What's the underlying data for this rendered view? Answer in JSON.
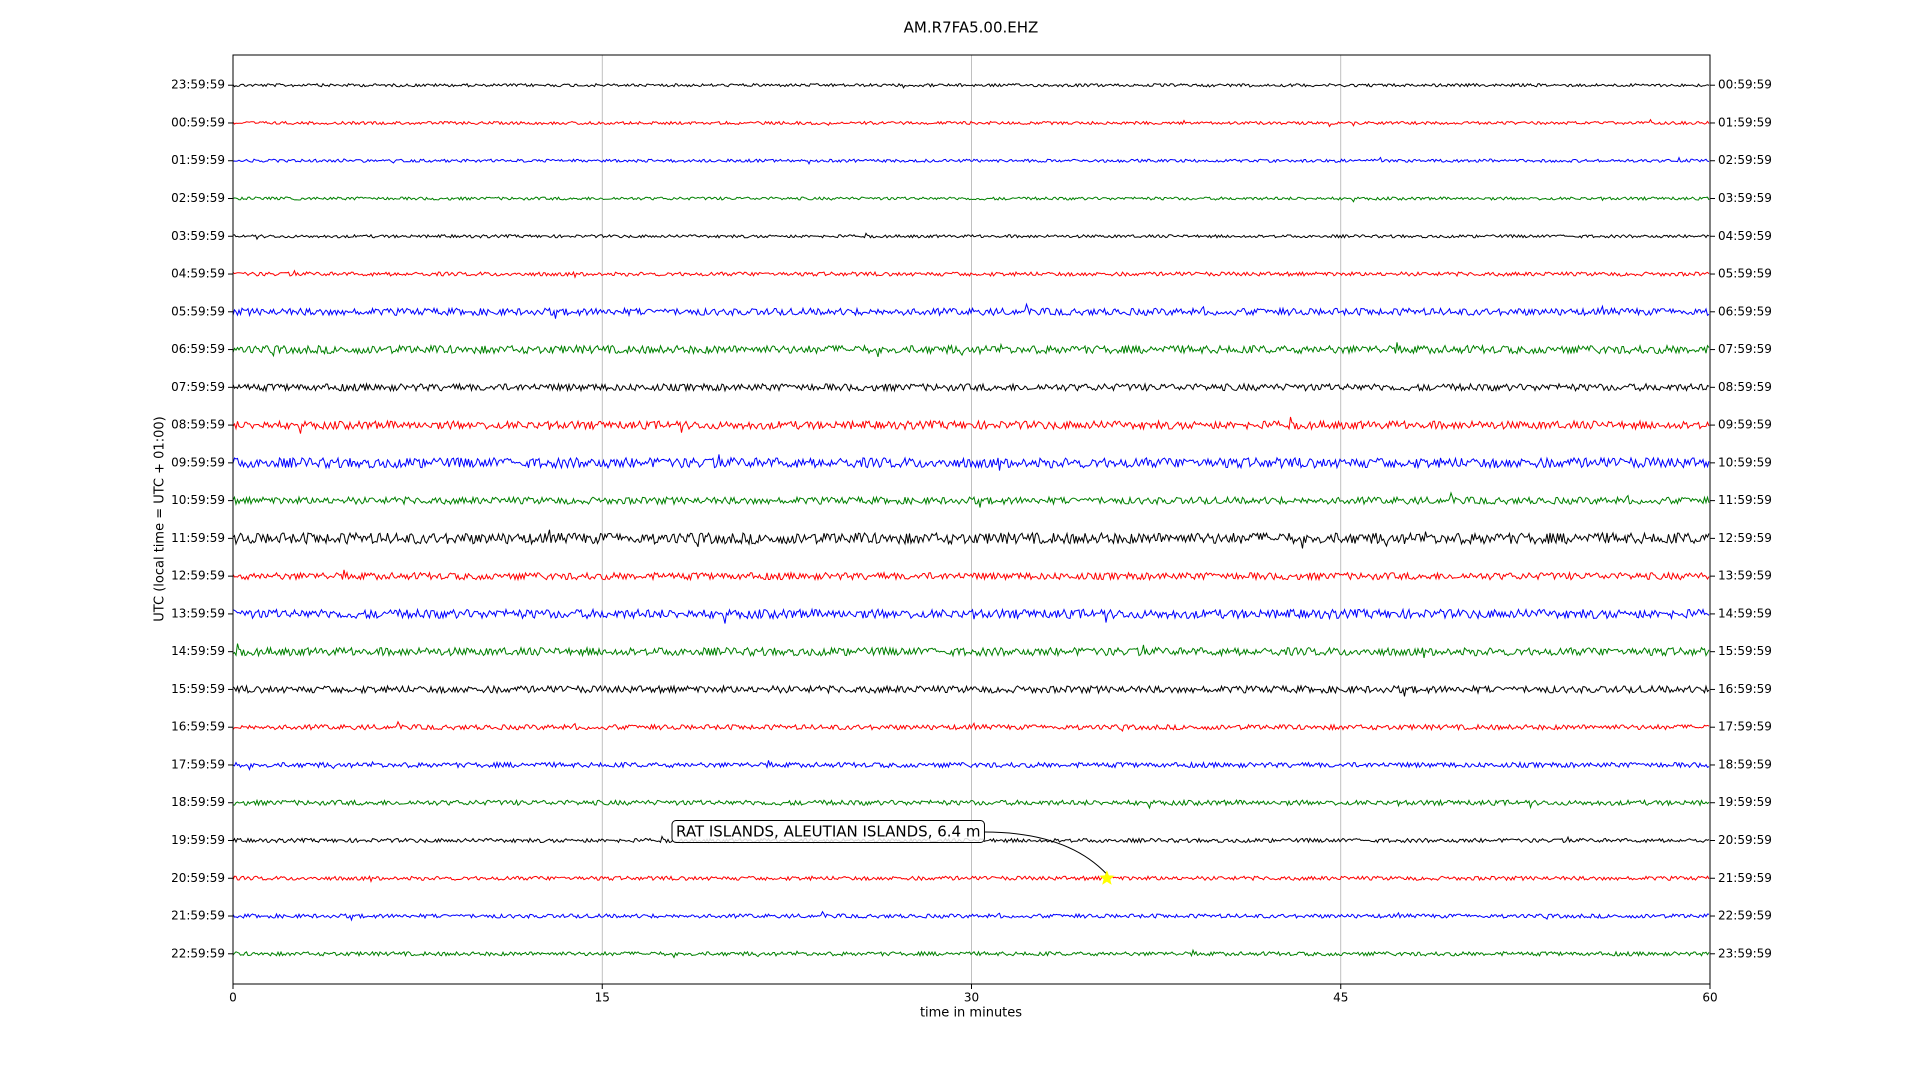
{
  "chart_data": {
    "type": "helicorder",
    "title": "AM.R7FA5.00.EHZ",
    "x_label": "time in minutes",
    "y_label": "UTC (local time = UTC + 01:00)",
    "xlim": [
      0,
      60
    ],
    "xticks": [
      0,
      15,
      30,
      45,
      60
    ],
    "grid": true,
    "colors": [
      "#000000",
      "#ff0000",
      "#0000ff",
      "#008000"
    ],
    "left_labels": [
      "23:59:59",
      "00:59:59",
      "01:59:59",
      "02:59:59",
      "03:59:59",
      "04:59:59",
      "05:59:59",
      "06:59:59",
      "07:59:59",
      "08:59:59",
      "09:59:59",
      "10:59:59",
      "11:59:59",
      "12:59:59",
      "13:59:59",
      "14:59:59",
      "15:59:59",
      "16:59:59",
      "17:59:59",
      "18:59:59",
      "19:59:59",
      "20:59:59",
      "21:59:59",
      "22:59:59"
    ],
    "right_labels": [
      "00:59:59",
      "01:59:59",
      "02:59:59",
      "03:59:59",
      "04:59:59",
      "05:59:59",
      "06:59:59",
      "07:59:59",
      "08:59:59",
      "09:59:59",
      "10:59:59",
      "11:59:59",
      "12:59:59",
      "13:59:59",
      "14:59:59",
      "15:59:59",
      "16:59:59",
      "17:59:59",
      "18:59:59",
      "19:59:59",
      "20:59:59",
      "21:59:59",
      "22:59:59",
      "23:59:59"
    ],
    "events": [
      {
        "label": "RAT ISLANDS, ALEUTIAN ISLANDS, 6.4 m",
        "x": 35.5,
        "row": 21,
        "color": "#ffff00"
      }
    ]
  }
}
